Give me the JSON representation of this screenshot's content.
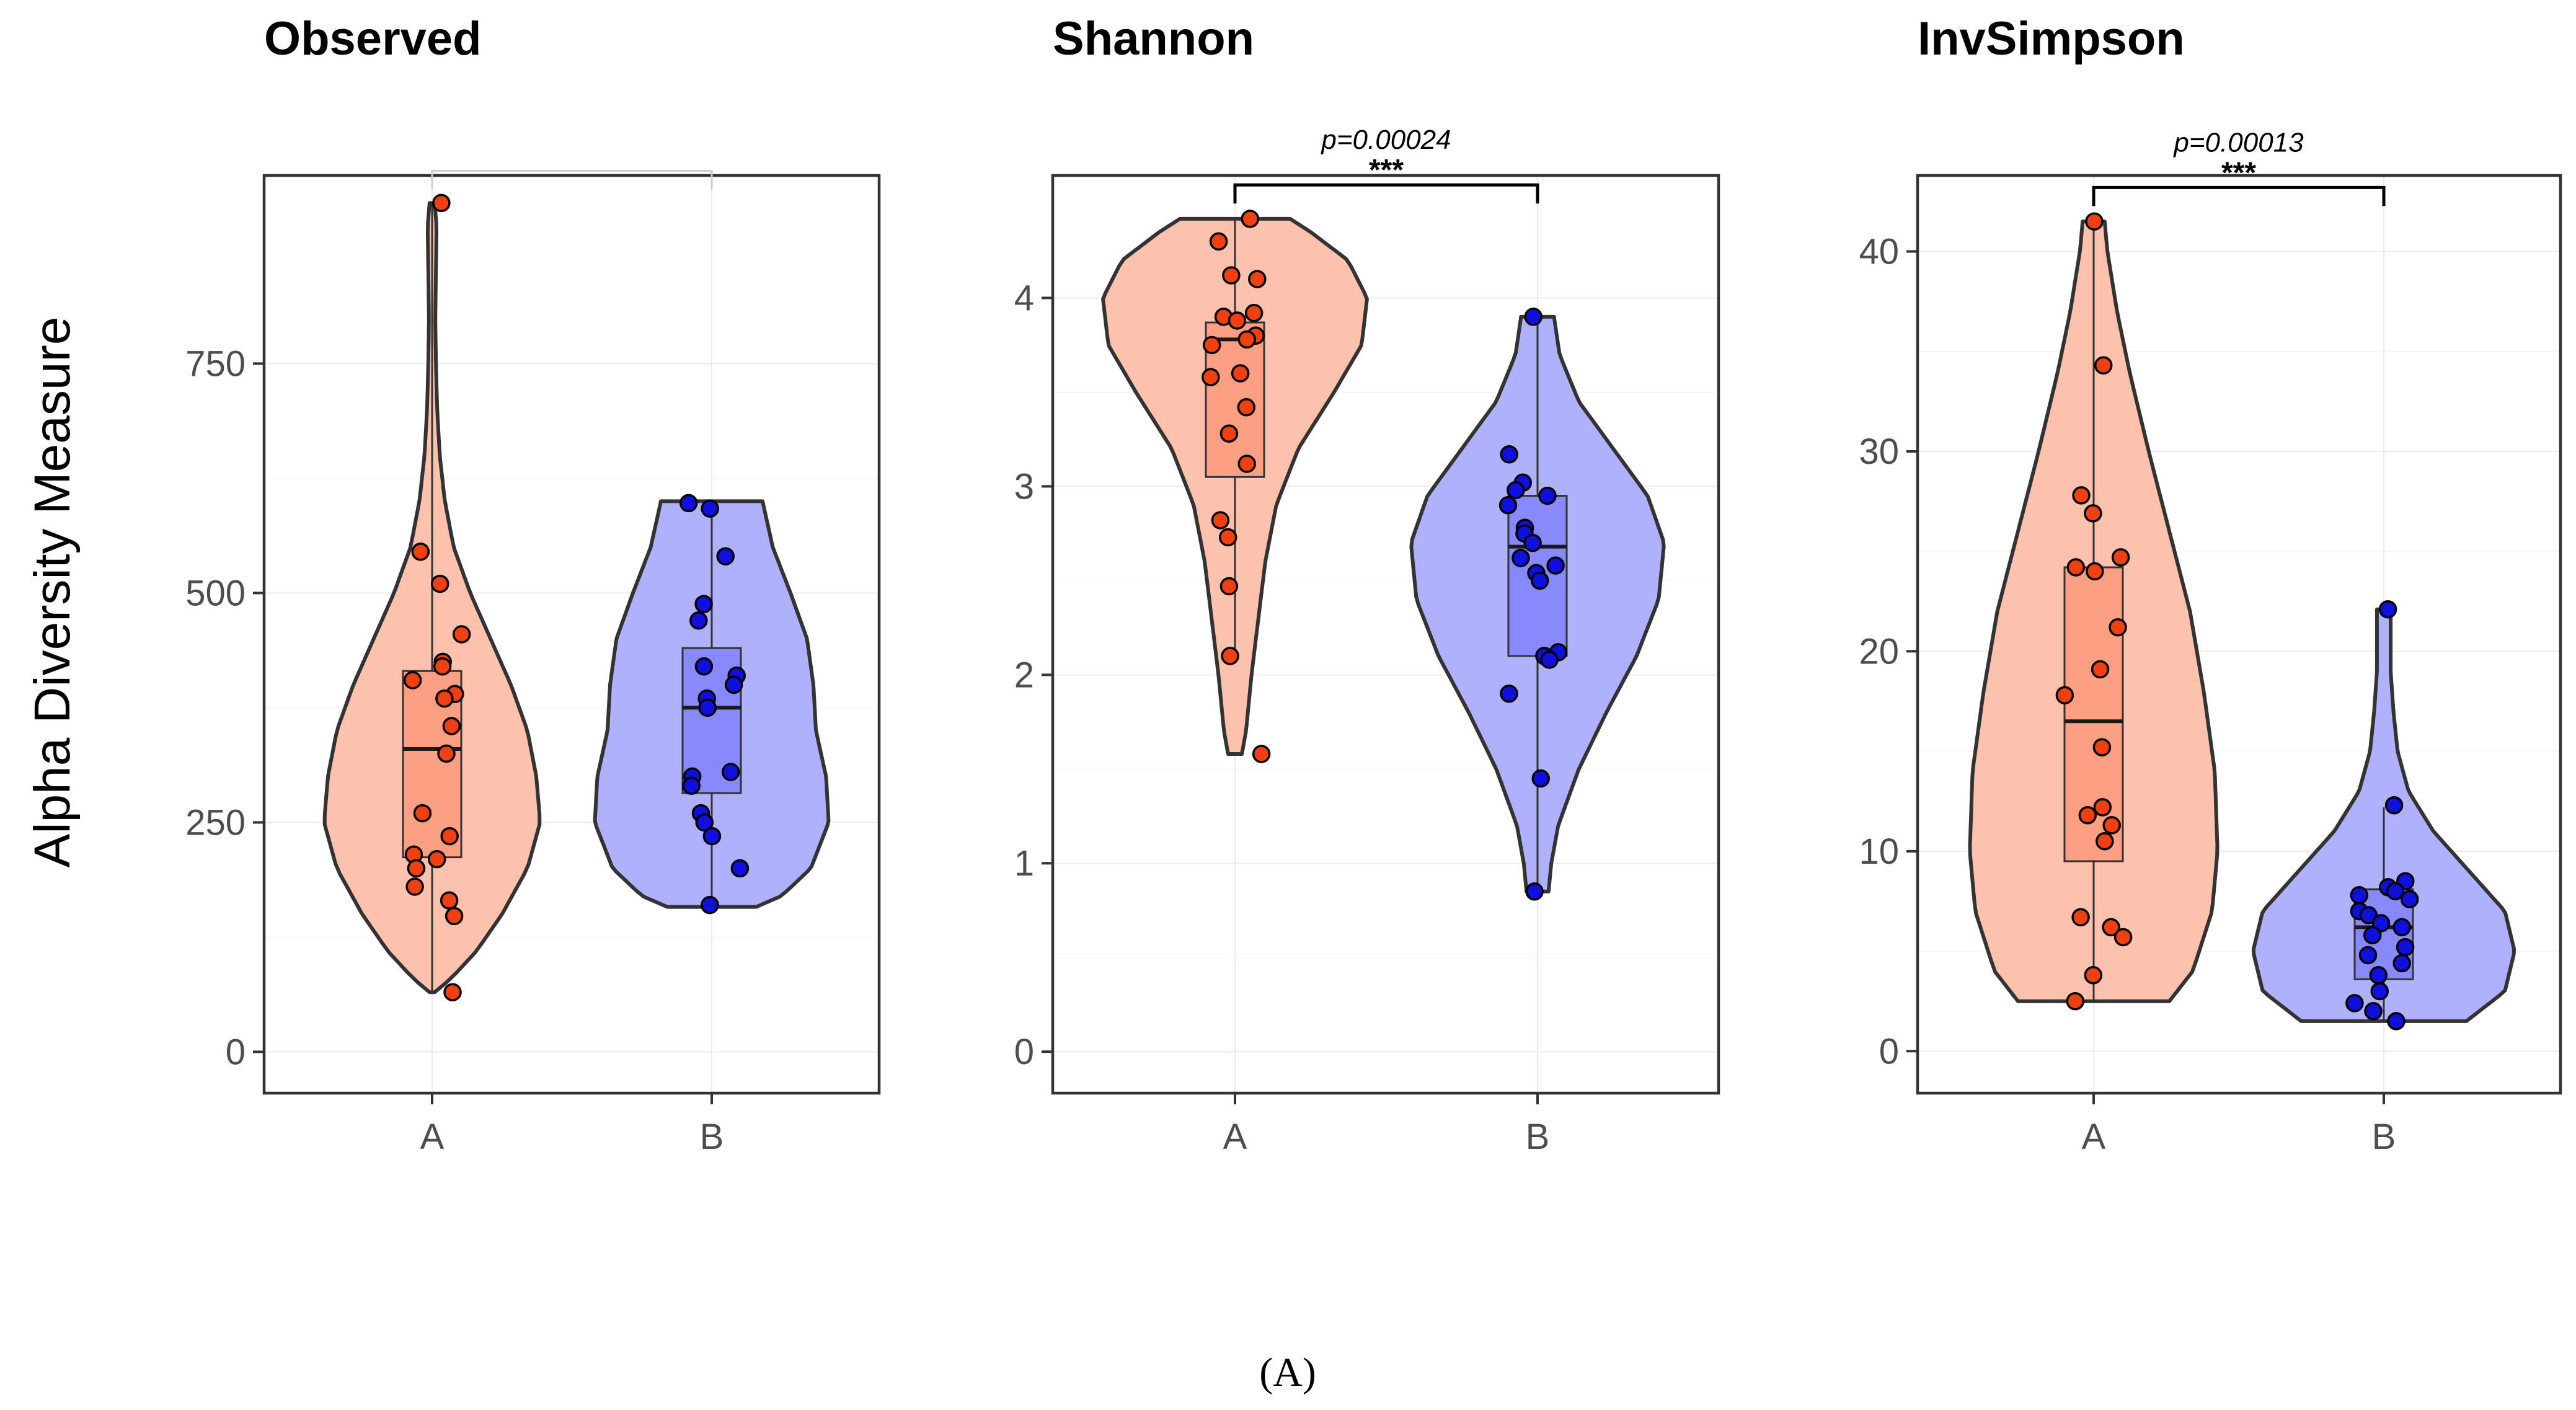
{
  "chart_data": [
    {
      "type": "violin",
      "title": "Observed",
      "ylabel": "Alpha Diversity Measure",
      "categories": [
        "A",
        "B"
      ],
      "ylim": [
        -45,
        955
      ],
      "yticks": [
        0,
        250,
        500,
        750
      ],
      "ytick_labels": [
        "0",
        "250",
        "500",
        "750"
      ],
      "colors": {
        "A": "#fdc2ad",
        "B": "#b0b1fd",
        "A_box": "#fd9f83",
        "B_box": "#8889fd",
        "A_point": "#ee4010",
        "B_point": "#1010dd"
      },
      "significance": {
        "p_label": "",
        "stars": "",
        "bar_value": 960,
        "color": "#cccccc"
      },
      "groups": [
        {
          "name": "A",
          "violin_range": [
            65,
            925
          ],
          "box": {
            "q1": 212,
            "median": 330,
            "q3": 415,
            "lower": 65,
            "upper": 925
          },
          "points": [
            925,
            545,
            510,
            455,
            425,
            420,
            405,
            390,
            385,
            355,
            325,
            260,
            235,
            215,
            210,
            200,
            180,
            165,
            148,
            65
          ],
          "density": [
            [
              65,
              0.02
            ],
            [
              80,
              0.15
            ],
            [
              110,
              0.35
            ],
            [
              150,
              0.55
            ],
            [
              200,
              0.75
            ],
            [
              250,
              0.85
            ],
            [
              300,
              0.82
            ],
            [
              350,
              0.75
            ],
            [
              400,
              0.62
            ],
            [
              450,
              0.46
            ],
            [
              500,
              0.3
            ],
            [
              550,
              0.17
            ],
            [
              600,
              0.1
            ],
            [
              650,
              0.06
            ],
            [
              700,
              0.04
            ],
            [
              750,
              0.03
            ],
            [
              800,
              0.025
            ],
            [
              850,
              0.03
            ],
            [
              900,
              0.035
            ],
            [
              925,
              0.02
            ]
          ]
        },
        {
          "name": "B",
          "violin_range": [
            158,
            600
          ],
          "box": {
            "q1": 282,
            "median": 375,
            "q3": 440,
            "lower": 158,
            "upper": 600
          },
          "points": [
            598,
            592,
            540,
            488,
            470,
            420,
            410,
            400,
            385,
            375,
            305,
            300,
            290,
            260,
            250,
            235,
            200,
            160
          ],
          "density": [
            [
              158,
              0.35
            ],
            [
              170,
              0.55
            ],
            [
              200,
              0.78
            ],
            [
              250,
              0.92
            ],
            [
              300,
              0.9
            ],
            [
              350,
              0.82
            ],
            [
              400,
              0.8
            ],
            [
              450,
              0.75
            ],
            [
              500,
              0.62
            ],
            [
              550,
              0.48
            ],
            [
              600,
              0.4
            ]
          ]
        }
      ]
    },
    {
      "type": "violin",
      "title": "Shannon",
      "ylabel": "",
      "categories": [
        "A",
        "B"
      ],
      "ylim": [
        -0.22,
        4.65
      ],
      "yticks": [
        0,
        1,
        2,
        3,
        4
      ],
      "ytick_labels": [
        "0",
        "1",
        "2",
        "3",
        "4"
      ],
      "colors": {
        "A": "#fdc2ad",
        "B": "#b0b1fd",
        "A_box": "#fd9f83",
        "B_box": "#8889fd",
        "A_point": "#ee4010",
        "B_point": "#1010dd"
      },
      "significance": {
        "p_label": "p=0.00024",
        "stars": "***",
        "bar_value": 4.6,
        "color": "#000000"
      },
      "groups": [
        {
          "name": "A",
          "violin_range": [
            1.58,
            4.42
          ],
          "box": {
            "q1": 3.05,
            "median": 3.78,
            "q3": 3.87,
            "lower": 2.1,
            "upper": 4.42
          },
          "points": [
            4.42,
            4.3,
            4.12,
            4.1,
            3.92,
            3.9,
            3.88,
            3.8,
            3.78,
            3.75,
            3.6,
            3.58,
            3.42,
            3.28,
            3.12,
            2.82,
            2.73,
            2.47,
            2.1,
            1.58
          ],
          "density": [
            [
              1.58,
              0.05
            ],
            [
              1.7,
              0.08
            ],
            [
              2.0,
              0.12
            ],
            [
              2.3,
              0.17
            ],
            [
              2.6,
              0.22
            ],
            [
              2.9,
              0.3
            ],
            [
              3.2,
              0.46
            ],
            [
              3.5,
              0.72
            ],
            [
              3.75,
              0.92
            ],
            [
              4.0,
              0.96
            ],
            [
              4.2,
              0.82
            ],
            [
              4.35,
              0.55
            ],
            [
              4.42,
              0.4
            ]
          ]
        },
        {
          "name": "B",
          "violin_range": [
            0.85,
            3.9
          ],
          "box": {
            "q1": 2.1,
            "median": 2.68,
            "q3": 2.95,
            "lower": 0.85,
            "upper": 3.9
          },
          "points": [
            3.9,
            3.17,
            3.02,
            2.98,
            2.95,
            2.9,
            2.78,
            2.75,
            2.7,
            2.62,
            2.58,
            2.54,
            2.5,
            2.12,
            2.1,
            2.08,
            1.9,
            1.45,
            0.85
          ],
          "density": [
            [
              0.85,
              0.08
            ],
            [
              1.0,
              0.1
            ],
            [
              1.2,
              0.15
            ],
            [
              1.5,
              0.3
            ],
            [
              1.8,
              0.5
            ],
            [
              2.1,
              0.72
            ],
            [
              2.4,
              0.88
            ],
            [
              2.7,
              0.92
            ],
            [
              2.95,
              0.8
            ],
            [
              3.2,
              0.55
            ],
            [
              3.45,
              0.3
            ],
            [
              3.7,
              0.16
            ],
            [
              3.9,
              0.12
            ]
          ]
        }
      ]
    },
    {
      "type": "violin",
      "title": "InvSimpson",
      "ylabel": "",
      "categories": [
        "A",
        "B"
      ],
      "ylim": [
        -2.1,
        43.8
      ],
      "yticks": [
        0,
        10,
        20,
        30,
        40
      ],
      "ytick_labels": [
        "0",
        "10",
        "20",
        "30",
        "40"
      ],
      "colors": {
        "A": "#fdc2ad",
        "B": "#b0b1fd",
        "A_box": "#fd9f83",
        "B_box": "#8889fd",
        "A_point": "#ee4010",
        "B_point": "#1010dd"
      },
      "significance": {
        "p_label": "p=0.00013",
        "stars": "***",
        "bar_value": 43.2,
        "color": "#000000"
      },
      "groups": [
        {
          "name": "A",
          "violin_range": [
            2.5,
            41.5
          ],
          "box": {
            "q1": 9.5,
            "median": 16.5,
            "q3": 24.2,
            "lower": 2.5,
            "upper": 41.5
          },
          "points": [
            41.5,
            34.3,
            27.8,
            26.9,
            24.7,
            24.2,
            24.0,
            21.2,
            19.1,
            17.8,
            15.2,
            12.2,
            11.8,
            11.3,
            10.5,
            6.7,
            6.2,
            5.7,
            3.8,
            2.5
          ],
          "density": [
            [
              2.5,
              0.55
            ],
            [
              4,
              0.72
            ],
            [
              7,
              0.86
            ],
            [
              10,
              0.9
            ],
            [
              14,
              0.88
            ],
            [
              18,
              0.8
            ],
            [
              22,
              0.7
            ],
            [
              26,
              0.55
            ],
            [
              30,
              0.4
            ],
            [
              34,
              0.26
            ],
            [
              37,
              0.17
            ],
            [
              40,
              0.1
            ],
            [
              41.5,
              0.08
            ]
          ]
        },
        {
          "name": "B",
          "violin_range": [
            1.5,
            22.1
          ],
          "box": {
            "q1": 3.6,
            "median": 6.2,
            "q3": 8.1,
            "lower": 1.5,
            "upper": 12.2
          },
          "points": [
            22.1,
            12.3,
            8.5,
            8.2,
            8.0,
            7.8,
            7.6,
            7.0,
            6.8,
            6.4,
            6.2,
            5.8,
            5.2,
            4.8,
            4.4,
            3.8,
            3.0,
            2.4,
            2.0,
            1.5
          ],
          "density": [
            [
              1.5,
              0.6
            ],
            [
              3,
              0.88
            ],
            [
              5,
              0.95
            ],
            [
              7,
              0.88
            ],
            [
              9,
              0.62
            ],
            [
              11,
              0.36
            ],
            [
              13,
              0.18
            ],
            [
              15,
              0.1
            ],
            [
              17,
              0.07
            ],
            [
              19,
              0.05
            ],
            [
              21,
              0.05
            ],
            [
              22.1,
              0.05
            ]
          ]
        }
      ]
    }
  ],
  "caption": "(A)"
}
